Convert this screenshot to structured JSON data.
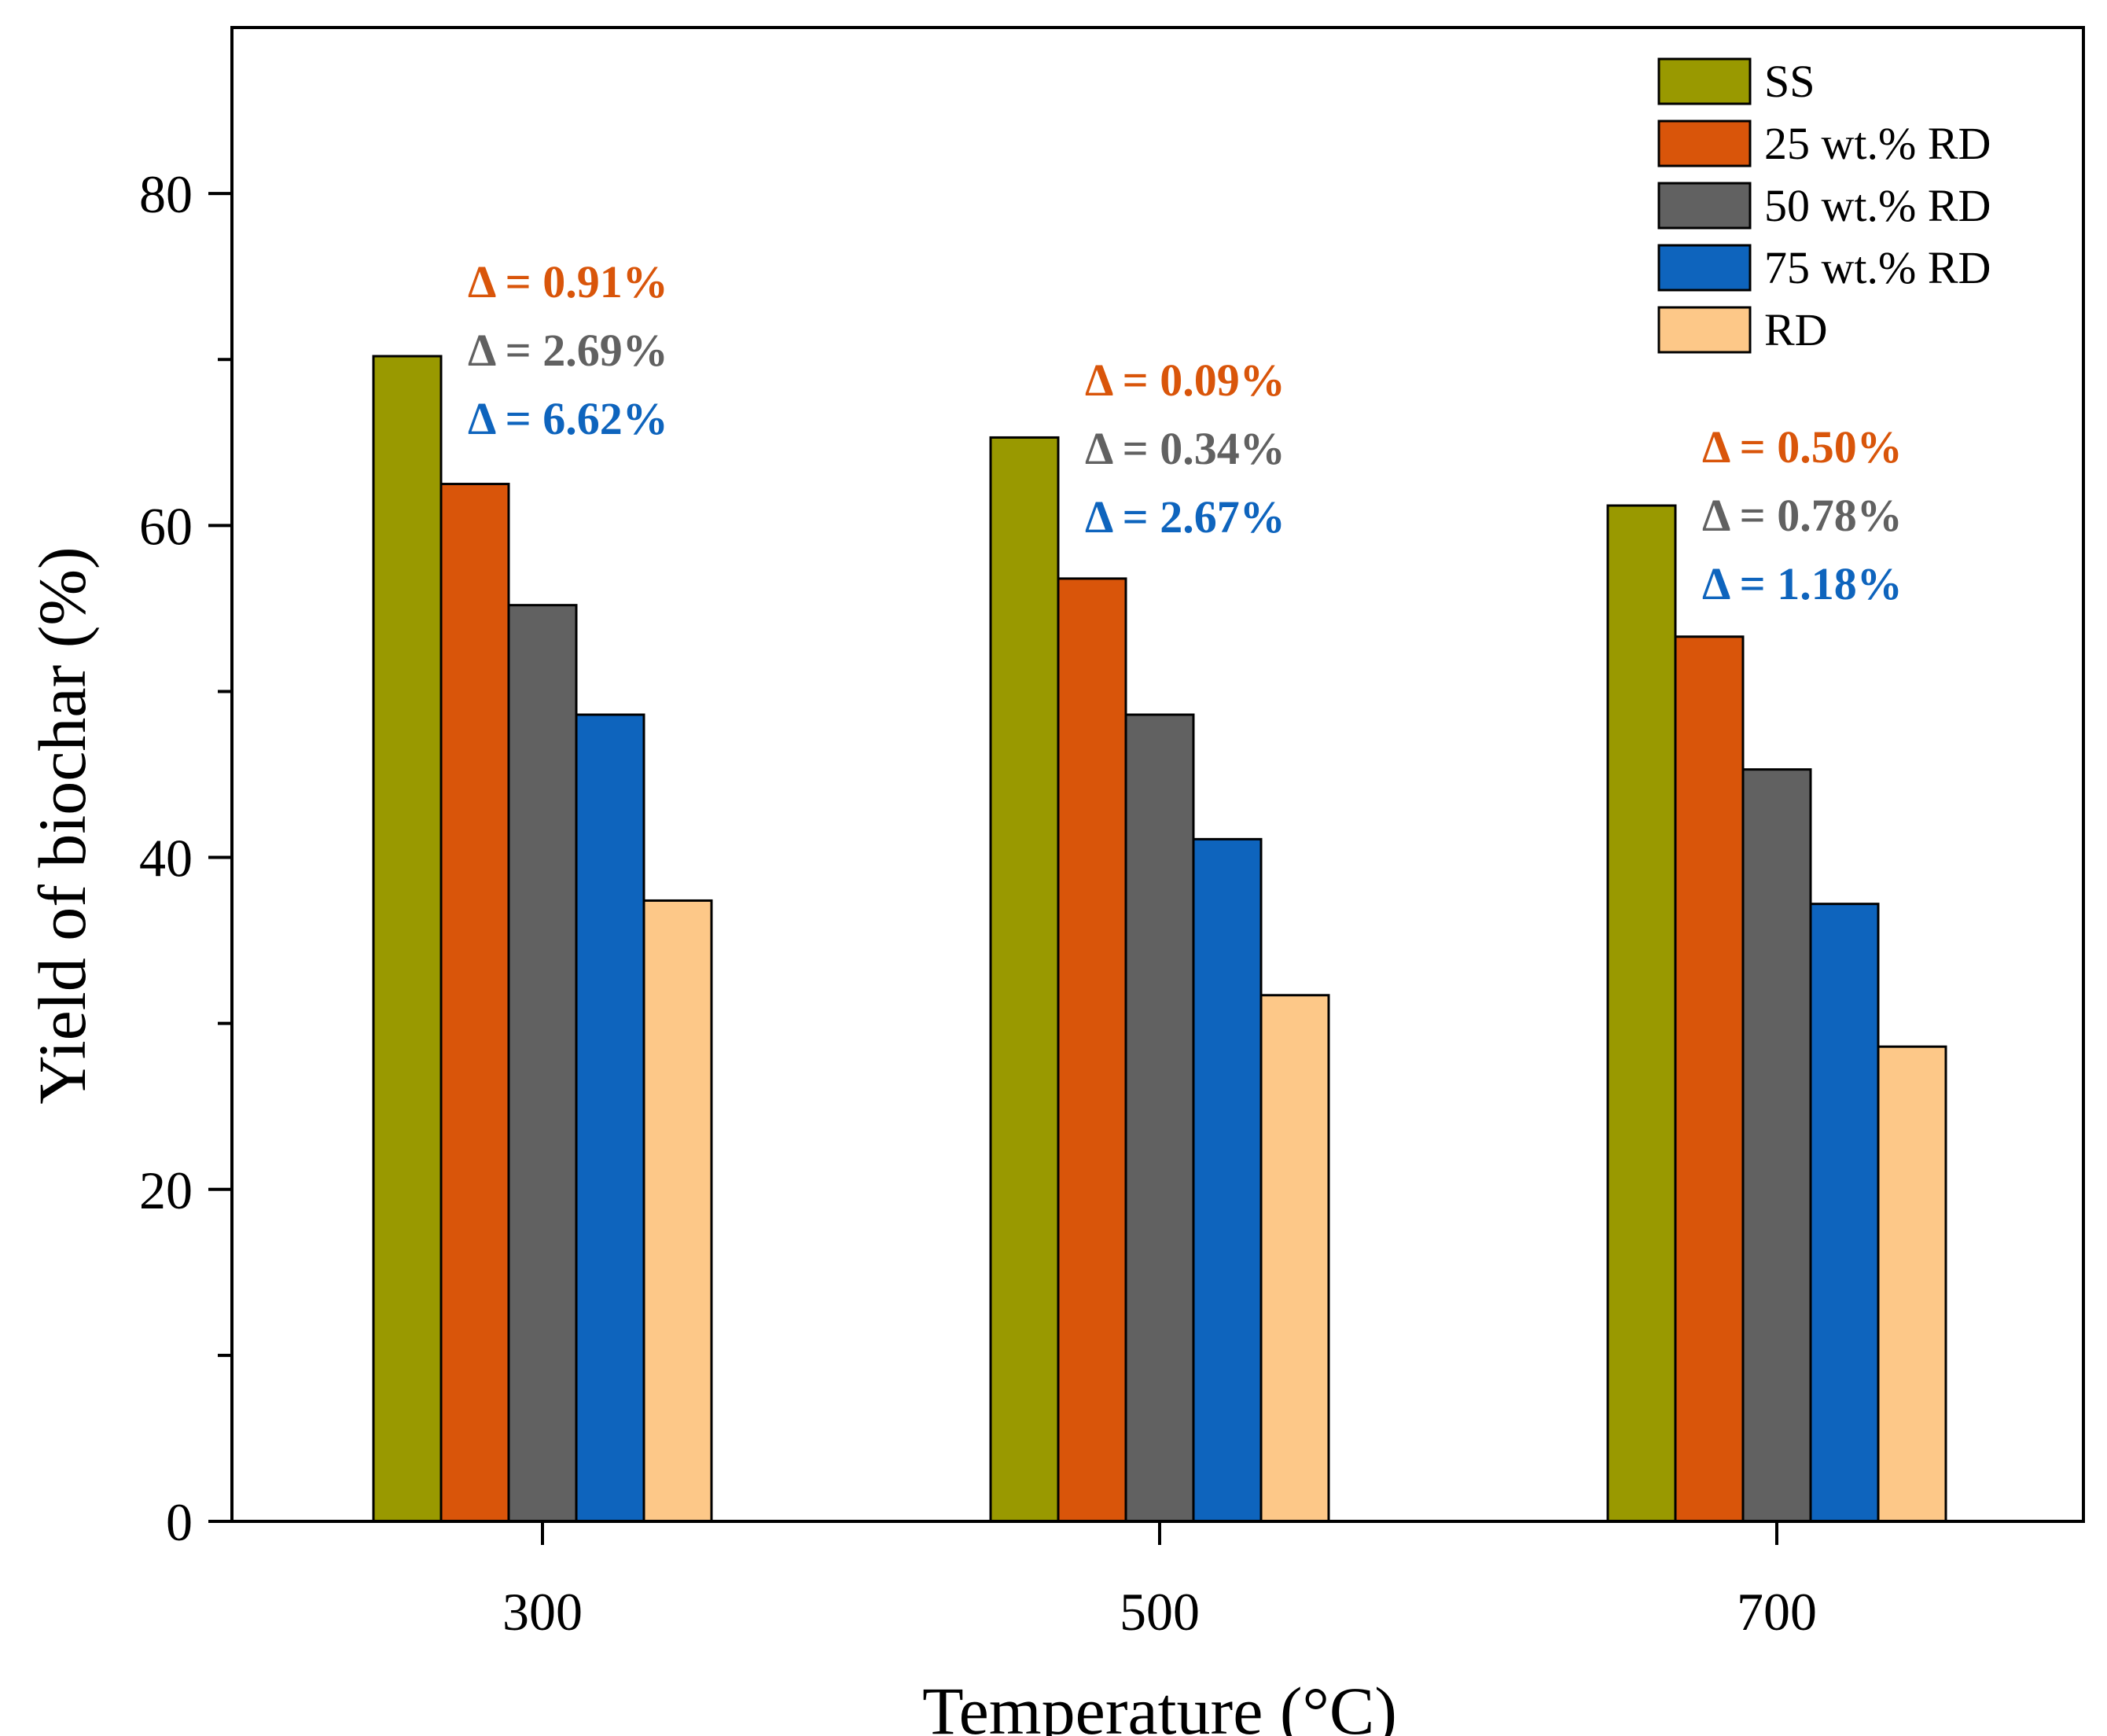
{
  "chart_data": {
    "type": "bar",
    "title": "",
    "xlabel": "Temperature (°C)",
    "ylabel": "Yield of biochar (%)",
    "ylim": [
      0,
      90
    ],
    "yticks": [
      0,
      20,
      40,
      60,
      80
    ],
    "categories": [
      "300",
      "500",
      "700"
    ],
    "series": [
      {
        "name": "SS",
        "color": "#999900",
        "values": [
          70.2,
          65.3,
          61.2
        ]
      },
      {
        "name": "25 wt.% RD",
        "color": "#D9550A",
        "values": [
          62.5,
          56.8,
          53.3
        ]
      },
      {
        "name": "50 wt.% RD",
        "color": "#616161",
        "values": [
          55.2,
          48.6,
          45.3
        ]
      },
      {
        "name": "75 wt.% RD",
        "color": "#0E64BD",
        "values": [
          48.6,
          41.1,
          37.2
        ]
      },
      {
        "name": "RD",
        "color": "#FDC888",
        "values": [
          37.4,
          31.7,
          28.6
        ]
      }
    ],
    "legend_position": "top-right",
    "annotations": [
      {
        "category": "300",
        "lines": [
          {
            "text": "Δ = 0.91%",
            "color": "#D9550A"
          },
          {
            "text": "Δ = 2.69%",
            "color": "#616161"
          },
          {
            "text": "Δ = 6.62%",
            "color": "#0E64BD"
          }
        ]
      },
      {
        "category": "500",
        "lines": [
          {
            "text": "Δ = 0.09%",
            "color": "#D9550A"
          },
          {
            "text": "Δ = 0.34%",
            "color": "#616161"
          },
          {
            "text": "Δ = 2.67%",
            "color": "#0E64BD"
          }
        ]
      },
      {
        "category": "700",
        "lines": [
          {
            "text": "Δ = 0.50%",
            "color": "#D9550A"
          },
          {
            "text": "Δ = 0.78%",
            "color": "#616161"
          },
          {
            "text": "Δ = 1.18%",
            "color": "#0E64BD"
          }
        ]
      }
    ]
  }
}
